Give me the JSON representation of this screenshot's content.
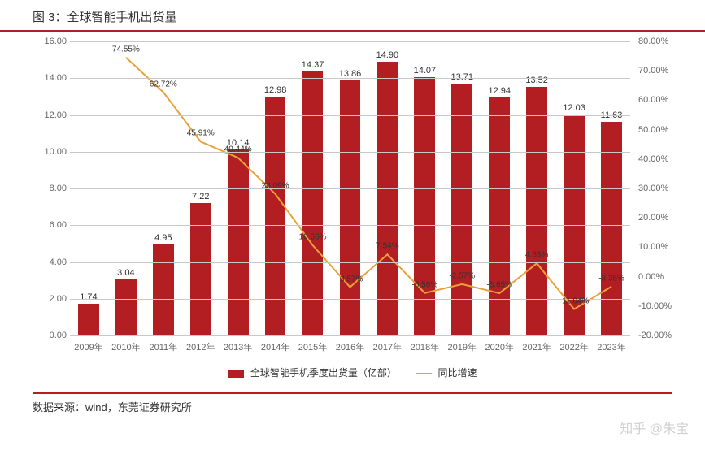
{
  "title": "图 3：全球智能手机出货量",
  "source": "数据来源：wind，东莞证券研究所",
  "watermark": "知乎 @朱宝",
  "chart": {
    "type": "bar+line",
    "categories": [
      "2009年",
      "2010年",
      "2011年",
      "2012年",
      "2013年",
      "2014年",
      "2015年",
      "2016年",
      "2017年",
      "2018年",
      "2019年",
      "2020年",
      "2021年",
      "2022年",
      "2023年"
    ],
    "bar_series": {
      "name": "全球智能手机季度出货量（亿部）",
      "color": "#b31e23",
      "values": [
        1.74,
        3.04,
        4.95,
        7.22,
        10.14,
        12.98,
        14.37,
        13.86,
        14.9,
        14.07,
        13.71,
        12.94,
        13.52,
        12.03,
        11.63
      ],
      "labels": [
        "1.74",
        "3.04",
        "4.95",
        "7.22",
        "10.14",
        "12.98",
        "14.37",
        "13.86",
        "14.90",
        "14.07",
        "13.71",
        "12.94",
        "13.52",
        "12.03",
        "11.63"
      ]
    },
    "line_series": {
      "name": "同比增速",
      "color": "#e8a23a",
      "values": [
        null,
        74.55,
        62.72,
        45.91,
        40.44,
        28.09,
        10.66,
        -3.57,
        7.54,
        -5.56,
        -2.57,
        -5.65,
        4.53,
        -11.04,
        -3.35
      ],
      "labels": [
        null,
        "74.55%",
        "62.72%",
        "45.91%",
        "40.44%",
        "28.09%",
        "10.66%",
        "-3.57%",
        "7.54%",
        "-5.56%",
        "-2.57%",
        "-5.65%",
        "4.53%",
        "-11.04%",
        "-3.35%"
      ]
    },
    "y_left": {
      "min": 0.0,
      "max": 16.0,
      "step": 2.0,
      "format": "0.00"
    },
    "y_right": {
      "min": -20.0,
      "max": 80.0,
      "step": 10.0,
      "suffix": "%",
      "format": "0.00"
    },
    "background_color": "#ffffff",
    "grid_color": "#c9c9c9",
    "label_fontsize": 11,
    "title_fontsize": 15
  },
  "legend": {
    "bar": "全球智能手机季度出货量（亿部）",
    "line": "同比增速"
  }
}
